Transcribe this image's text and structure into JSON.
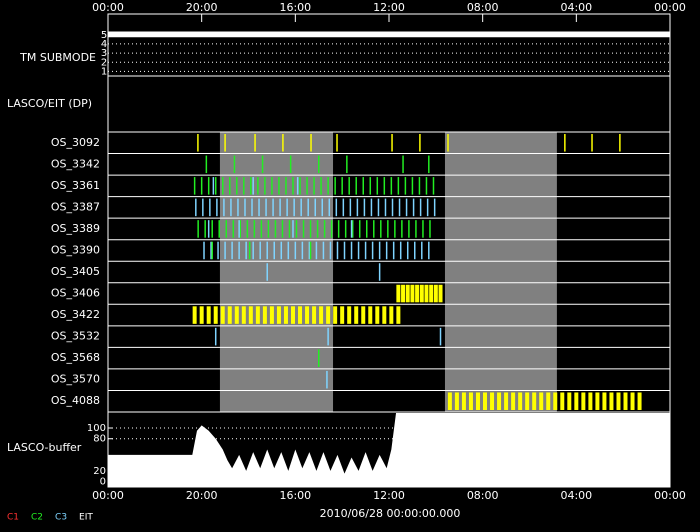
{
  "chart_data": {
    "type": "timeline",
    "date": "2010/06/28 00:00:00.000",
    "xlim": [
      0,
      24
    ],
    "xticks": [
      {
        "value": 0,
        "label": "00:00"
      },
      {
        "value": 4,
        "label": "20:00"
      },
      {
        "value": 8,
        "label": "16:00"
      },
      {
        "value": 12,
        "label": "12:00"
      },
      {
        "value": 16,
        "label": "08:00"
      },
      {
        "value": 20,
        "label": "04:00"
      },
      {
        "value": 24,
        "label": "00:00"
      }
    ],
    "shaded": [
      [
        4.78,
        9.61
      ],
      [
        14.39,
        19.17
      ]
    ],
    "submode": {
      "label": "TM SUBMODE",
      "x": [
        0,
        24
      ],
      "values": [
        5,
        5
      ],
      "ylim": [
        0.5,
        5.3
      ],
      "yticks": [
        1,
        2,
        3,
        4,
        5
      ]
    },
    "dp_label": "LASCO/EIT (DP)",
    "rows": [
      {
        "name": "OS_3092",
        "events": [
          {
            "color": "#ffff00",
            "times": [
              3.84,
              5.0,
              6.28,
              7.47,
              8.67,
              9.78,
              12.13,
              13.32,
              14.52,
              19.51,
              20.67,
              21.86
            ]
          }
        ]
      },
      {
        "name": "OS_3342",
        "events": [
          {
            "color": "#22ee22",
            "times": [
              4.2,
              5.4,
              6.6,
              7.8,
              9.0,
              10.2,
              12.6,
              13.7
            ]
          }
        ]
      },
      {
        "name": "OS_3361",
        "events": [
          {
            "color": "#22ee22",
            "times": [
              3.7,
              4.0,
              4.3,
              4.6,
              4.9,
              5.2,
              5.5,
              5.8,
              6.1,
              6.4,
              6.7,
              7.0,
              7.3,
              7.6,
              7.9,
              8.2,
              8.5,
              8.8,
              9.1,
              9.4,
              9.7,
              10.0,
              10.3,
              10.6,
              10.9,
              11.2,
              11.5,
              11.8,
              12.1,
              12.4,
              12.7,
              13.0,
              13.3,
              13.6,
              13.9
            ]
          },
          {
            "color": "#7fd4ff",
            "times": [
              4.5,
              6.2,
              8.1
            ]
          }
        ]
      },
      {
        "name": "OS_3387",
        "events": [
          {
            "color": "#7fd4ff",
            "times": [
              3.75,
              4.05,
              4.35,
              4.65,
              4.95,
              5.25,
              5.55,
              5.85,
              6.15,
              6.45,
              6.75,
              7.05,
              7.35,
              7.65,
              7.95,
              8.25,
              8.55,
              8.85,
              9.15,
              9.45,
              9.75,
              10.05,
              10.35,
              10.65,
              10.95,
              11.25,
              11.55,
              11.85,
              12.15,
              12.45,
              12.75,
              13.05,
              13.35,
              13.65,
              13.95
            ]
          }
        ]
      },
      {
        "name": "OS_3389",
        "events": [
          {
            "color": "#22ee22",
            "times": [
              3.85,
              4.15,
              4.45,
              4.75,
              5.05,
              5.35,
              5.65,
              5.95,
              6.25,
              6.55,
              6.85,
              7.15,
              7.45,
              7.75,
              8.05,
              8.35,
              8.65,
              8.95,
              9.25,
              9.55,
              9.85,
              10.15,
              10.45,
              10.75,
              11.05,
              11.35,
              11.65,
              11.95,
              12.25,
              12.55,
              12.85,
              13.15,
              13.45,
              13.75
            ]
          },
          {
            "color": "#7fd4ff",
            "times": [
              4.3,
              5.6,
              7.9,
              10.4
            ]
          }
        ]
      },
      {
        "name": "OS_3390",
        "events": [
          {
            "color": "#7fd4ff",
            "times": [
              4.1,
              4.4,
              4.7,
              5.0,
              5.3,
              5.6,
              5.9,
              6.2,
              6.5,
              6.8,
              7.1,
              7.4,
              7.7,
              8.0,
              8.3,
              8.6,
              8.9,
              9.2,
              9.5,
              9.8,
              10.1,
              10.4,
              10.7,
              11.0,
              11.3,
              11.6,
              11.9,
              12.2,
              12.5,
              12.8,
              13.1,
              13.4,
              13.7
            ]
          },
          {
            "color": "#22ee22",
            "times": [
              4.45,
              6.05,
              8.65
            ]
          }
        ]
      },
      {
        "name": "OS_3405",
        "events": [
          {
            "color": "#7fd4ff",
            "times": [
              6.8,
              11.6
            ]
          }
        ]
      },
      {
        "name": "OS_3406",
        "events": [
          {
            "color": "#ffff00",
            "times": [
              12.4,
              12.6,
              12.8,
              13.0,
              13.2,
              13.4,
              13.6,
              13.8,
              14.0,
              14.2
            ]
          }
        ]
      },
      {
        "name": "OS_3422",
        "events": [
          {
            "color": "#ffff00",
            "times": [
              3.7,
              4.0,
              4.3,
              4.6,
              4.9,
              5.2,
              5.5,
              5.8,
              6.1,
              6.4,
              6.7,
              7.0,
              7.3,
              7.6,
              7.9,
              8.2,
              8.5,
              8.8,
              9.1,
              9.4,
              9.7,
              10.0,
              10.3,
              10.6,
              10.9,
              11.2,
              11.5,
              11.8,
              12.1,
              12.4
            ]
          }
        ]
      },
      {
        "name": "OS_3532",
        "events": [
          {
            "color": "#7fd4ff",
            "times": [
              4.6,
              9.4,
              14.2
            ]
          }
        ]
      },
      {
        "name": "OS_3568",
        "events": [
          {
            "color": "#22ee22",
            "times": [
              9.0
            ]
          }
        ]
      },
      {
        "name": "OS_3570",
        "events": [
          {
            "color": "#7fd4ff",
            "times": [
              9.35
            ]
          }
        ]
      },
      {
        "name": "OS_4088",
        "events": [
          {
            "color": "#ffff00",
            "times": [
              14.6,
              14.9,
              15.2,
              15.5,
              15.8,
              16.1,
              16.4,
              16.7,
              17.0,
              17.3,
              17.6,
              17.9,
              18.2,
              18.5,
              18.8,
              19.1,
              19.4,
              19.7,
              20.0,
              20.3,
              20.6,
              20.9,
              21.2,
              21.5,
              21.8,
              22.1,
              22.4,
              22.7
            ]
          }
        ]
      }
    ],
    "buffer": {
      "label": "LASCO-buffer",
      "x": [
        0,
        3.6,
        3.8,
        4.0,
        4.3,
        4.6,
        4.9,
        5.1,
        5.3,
        5.6,
        5.9,
        6.2,
        6.5,
        6.8,
        7.1,
        7.4,
        7.7,
        8.0,
        8.3,
        8.6,
        8.9,
        9.2,
        9.5,
        9.8,
        10.1,
        10.4,
        10.7,
        11.0,
        11.3,
        11.6,
        11.9,
        12.1,
        12.3,
        24
      ],
      "values": [
        50,
        50,
        95,
        105,
        95,
        80,
        60,
        40,
        25,
        50,
        20,
        55,
        25,
        60,
        25,
        55,
        20,
        60,
        25,
        55,
        20,
        55,
        20,
        50,
        15,
        45,
        20,
        55,
        20,
        50,
        25,
        60,
        128,
        128
      ],
      "ylim": [
        -10,
        128
      ],
      "yticks": [
        0,
        20,
        80,
        100
      ],
      "dotted": [
        80,
        100
      ]
    },
    "legend": [
      {
        "name": "C1",
        "color": "#ff3030"
      },
      {
        "name": "C2",
        "color": "#22ee22"
      },
      {
        "name": "C3",
        "color": "#7fd4ff"
      },
      {
        "name": "EIT",
        "color": "#ffffff"
      }
    ]
  }
}
